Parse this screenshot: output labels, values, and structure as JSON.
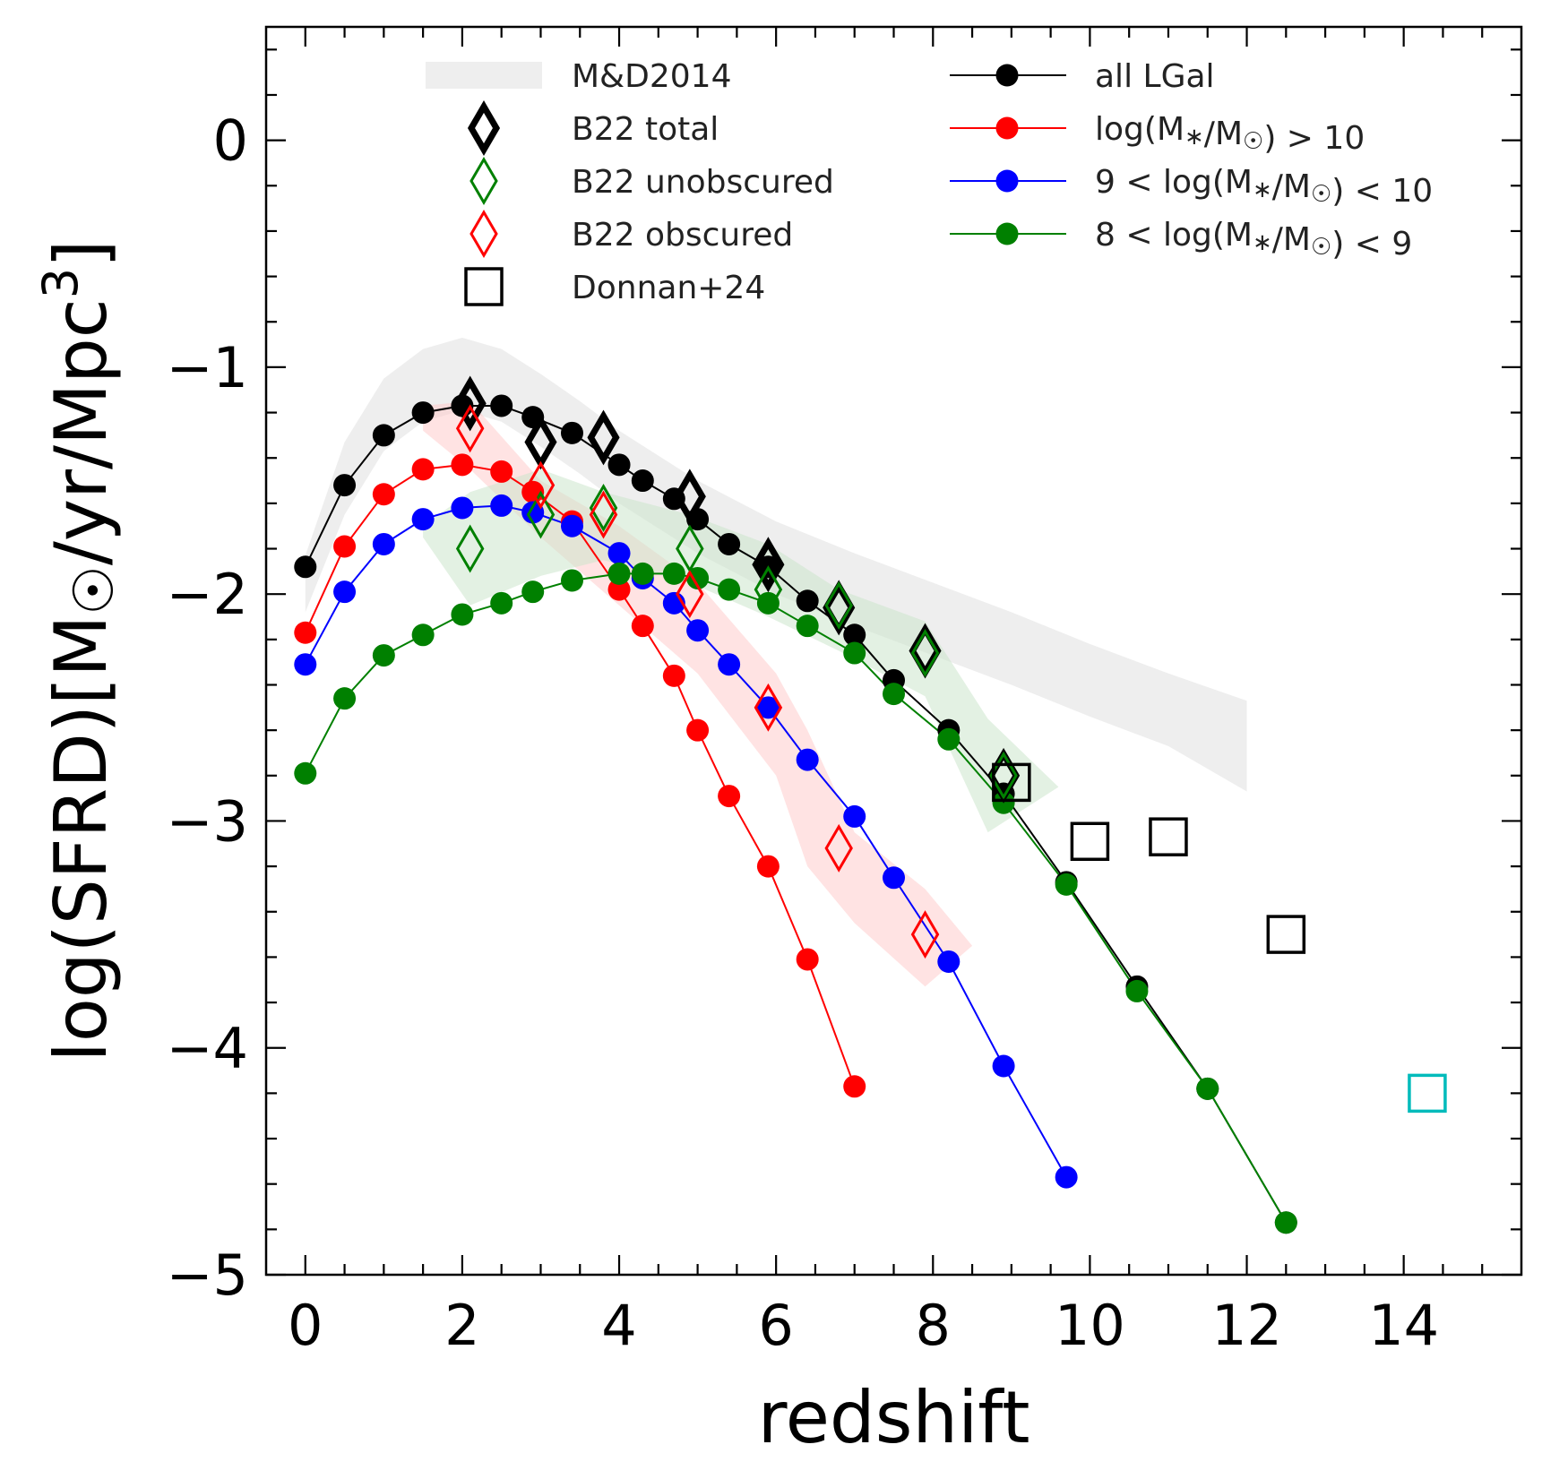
{
  "chart_data": {
    "type": "scatter",
    "xlabel": "redshift",
    "ylabel": "log(SFRD)[M☉/yr/Mpc³]",
    "ylabel_parts": {
      "pre": "log(SFRD)[M",
      "sun": "☉",
      "mid": "/yr/Mpc",
      "sup": "3",
      "post": "]"
    },
    "xlim": [
      -0.5,
      15.5
    ],
    "ylim": [
      -5,
      0.5
    ],
    "xticks": [
      0,
      2,
      4,
      6,
      8,
      10,
      12,
      14
    ],
    "yticks": [
      0,
      -1,
      -2,
      -3,
      -4,
      -5
    ],
    "xtick_labels": [
      "0",
      "2",
      "4",
      "6",
      "8",
      "10",
      "12",
      "14"
    ],
    "ytick_labels": [
      "0",
      "−1",
      "−2",
      "−3",
      "−4",
      "−5"
    ],
    "legend_placement": "top",
    "colors": {
      "all": "#000000",
      "high": "#ff0000",
      "mid": "#0000ff",
      "low": "#008000",
      "cyan": "#00bbbb",
      "md_band": "#dddddd",
      "red_band": "#ffcccc",
      "green_band": "#cce6cc"
    },
    "bands": [
      {
        "name": "M&D2014",
        "color": "#dddddd",
        "opacity": 0.5,
        "x": [
          0,
          0.5,
          1,
          1.5,
          2,
          2.5,
          3,
          3.5,
          4,
          5,
          6,
          7,
          8,
          9,
          10,
          11,
          12
        ],
        "upper": [
          -1.83,
          -1.33,
          -1.05,
          -0.92,
          -0.87,
          -0.92,
          -1.03,
          -1.15,
          -1.28,
          -1.5,
          -1.68,
          -1.82,
          -1.95,
          -2.08,
          -2.22,
          -2.35,
          -2.47
        ],
        "lower": [
          -2.08,
          -1.65,
          -1.37,
          -1.24,
          -1.19,
          -1.24,
          -1.35,
          -1.47,
          -1.6,
          -1.82,
          -2.0,
          -2.14,
          -2.27,
          -2.4,
          -2.54,
          -2.67,
          -2.87
        ]
      },
      {
        "name": "",
        "color": "#ffcccc",
        "opacity": 0.55,
        "x": [
          1.5,
          2.1,
          3,
          4,
          5,
          6,
          6.4,
          7,
          7.9,
          8.5
        ],
        "upper": [
          -1.17,
          -1.15,
          -1.5,
          -1.7,
          -1.95,
          -2.35,
          -2.6,
          -3.05,
          -3.3,
          -3.55
        ],
        "lower": [
          -1.28,
          -1.45,
          -1.75,
          -2.05,
          -2.35,
          -2.8,
          -3.2,
          -3.45,
          -3.73,
          -3.55
        ]
      },
      {
        "name": "",
        "color": "#cce6cc",
        "opacity": 0.55,
        "x": [
          1.5,
          2.1,
          3,
          3.8,
          4.9,
          5.9,
          6.8,
          7.9,
          8.7,
          9.6
        ],
        "upper": [
          -1.7,
          -1.55,
          -1.45,
          -1.55,
          -1.65,
          -1.78,
          -1.98,
          -2.12,
          -2.55,
          -2.85
        ],
        "lower": [
          -1.75,
          -2.05,
          -1.92,
          -1.85,
          -1.95,
          -2.1,
          -2.25,
          -2.45,
          -3.05,
          -2.85
        ]
      }
    ],
    "series": [
      {
        "name": "all LGal",
        "color": "#000000",
        "marker": "circle",
        "line": true,
        "x": [
          0,
          0.5,
          1.0,
          1.5,
          2.0,
          2.5,
          2.9,
          3.4,
          4.0,
          4.3,
          4.7,
          5.0,
          5.4,
          5.9,
          6.4,
          7.0,
          7.5,
          8.2,
          8.9,
          9.7,
          10.6,
          11.5,
          12.5
        ],
        "y": [
          -1.88,
          -1.52,
          -1.3,
          -1.2,
          -1.17,
          -1.17,
          -1.22,
          -1.29,
          -1.43,
          -1.5,
          -1.58,
          -1.67,
          -1.78,
          -1.88,
          -2.03,
          -2.18,
          -2.38,
          -2.6,
          -2.88,
          -3.27,
          -3.73,
          -4.18,
          -4.77
        ]
      },
      {
        "name": "log(M*/M☉) > 10",
        "color": "#ff0000",
        "marker": "circle",
        "line": true,
        "x": [
          0,
          0.5,
          1.0,
          1.5,
          2.0,
          2.5,
          2.9,
          3.4,
          4.0,
          4.3,
          4.7,
          5.0,
          5.4,
          5.9,
          6.4,
          7.0
        ],
        "y": [
          -2.17,
          -1.79,
          -1.56,
          -1.45,
          -1.43,
          -1.46,
          -1.55,
          -1.68,
          -1.98,
          -2.14,
          -2.36,
          -2.6,
          -2.89,
          -3.2,
          -3.61,
          -4.17
        ]
      },
      {
        "name": "9 < log(M*/M☉) < 10",
        "color": "#0000ff",
        "marker": "circle",
        "line": true,
        "x": [
          0,
          0.5,
          1.0,
          1.5,
          2.0,
          2.5,
          2.9,
          3.4,
          4.0,
          4.3,
          4.7,
          5.0,
          5.4,
          5.9,
          6.4,
          7.0,
          7.5,
          8.2,
          8.9,
          9.7
        ],
        "y": [
          -2.31,
          -1.99,
          -1.78,
          -1.67,
          -1.62,
          -1.61,
          -1.64,
          -1.7,
          -1.82,
          -1.93,
          -2.04,
          -2.16,
          -2.31,
          -2.5,
          -2.73,
          -2.98,
          -3.25,
          -3.62,
          -4.08,
          -4.57
        ]
      },
      {
        "name": "8 < log(M*/M☉) < 9",
        "color": "#008000",
        "marker": "circle",
        "line": true,
        "x": [
          0,
          0.5,
          1.0,
          1.5,
          2.0,
          2.5,
          2.9,
          3.4,
          4.0,
          4.3,
          4.7,
          5.0,
          5.4,
          5.9,
          6.4,
          7.0,
          7.5,
          8.2,
          8.9,
          9.7,
          10.6,
          11.5,
          12.5
        ],
        "y": [
          -2.79,
          -2.46,
          -2.27,
          -2.18,
          -2.09,
          -2.04,
          -1.99,
          -1.94,
          -1.91,
          -1.91,
          -1.91,
          -1.93,
          -1.98,
          -2.04,
          -2.14,
          -2.26,
          -2.44,
          -2.64,
          -2.92,
          -3.28,
          -3.75,
          -4.18,
          -4.77
        ]
      },
      {
        "name": "B22 total",
        "color": "#000000",
        "marker": "diamond",
        "line": false,
        "strokeWidth": 7,
        "x": [
          2.1,
          3.0,
          3.8,
          4.9,
          5.9,
          6.8,
          7.9,
          8.9
        ],
        "y": [
          -1.16,
          -1.33,
          -1.31,
          -1.57,
          -1.87,
          -2.06,
          -2.25,
          -2.8
        ]
      },
      {
        "name": "B22 unobscured",
        "color": "#008000",
        "marker": "diamond",
        "line": false,
        "strokeWidth": 3,
        "x": [
          2.1,
          3.0,
          3.8,
          4.9,
          5.9,
          6.8,
          7.9,
          8.9
        ],
        "y": [
          -1.8,
          -1.65,
          -1.62,
          -1.8,
          -1.98,
          -2.05,
          -2.26,
          -2.8
        ]
      },
      {
        "name": "B22 obscured",
        "color": "#ff0000",
        "marker": "diamond",
        "line": false,
        "strokeWidth": 3,
        "x": [
          2.1,
          3.0,
          3.8,
          4.9,
          5.9,
          6.8,
          7.9
        ],
        "y": [
          -1.27,
          -1.52,
          -1.65,
          -2.0,
          -2.5,
          -3.12,
          -3.5
        ]
      },
      {
        "name": "Donnan+24",
        "color": "#000000",
        "marker": "square",
        "line": false,
        "x": [
          9.0,
          10.0,
          11.0,
          12.5
        ],
        "y": [
          -2.83,
          -3.09,
          -3.07,
          -3.5
        ]
      },
      {
        "name": "",
        "color": "#00bbbb",
        "marker": "square",
        "line": false,
        "x": [
          14.3
        ],
        "y": [
          -4.2
        ]
      }
    ],
    "legend_left": [
      {
        "label": "M&D2014",
        "kind": "band",
        "color": "#dddddd"
      },
      {
        "label": "B22 total",
        "kind": "diamond",
        "color": "#000000",
        "strokeWidth": 7
      },
      {
        "label": "B22 unobscured",
        "kind": "diamond",
        "color": "#008000",
        "strokeWidth": 3
      },
      {
        "label": "B22 obscured",
        "kind": "diamond",
        "color": "#ff0000",
        "strokeWidth": 3
      },
      {
        "label": "Donnan+24",
        "kind": "square",
        "color": "#000000"
      }
    ],
    "legend_right": [
      {
        "label_html": "all LGal",
        "kind": "line-circle",
        "color": "#000000"
      },
      {
        "label_html": "log(M<tspan font-size='26' dy='4'>∗</tspan><tspan dy='-4'>/M</tspan><tspan font-size='26' dy='4'>⊙</tspan><tspan dy='-4'>) &gt; 10</tspan>",
        "label": "log(M*/M☉) > 10",
        "kind": "line-circle",
        "color": "#ff0000"
      },
      {
        "label": "9 < log(M*/M☉) < 10",
        "kind": "line-circle",
        "color": "#0000ff"
      },
      {
        "label": "8 < log(M*/M☉) < 9",
        "kind": "line-circle",
        "color": "#008000"
      }
    ]
  }
}
